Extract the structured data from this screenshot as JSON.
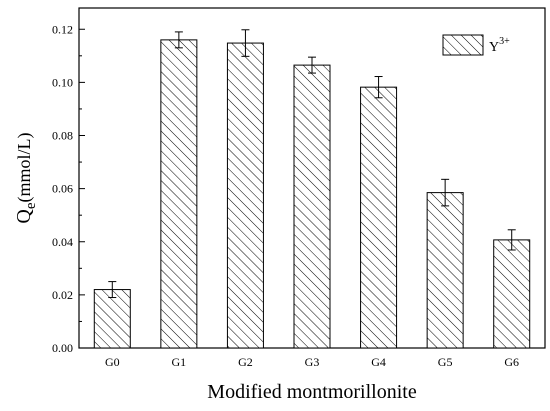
{
  "chart_data": {
    "type": "bar",
    "categories": [
      "G0",
      "G1",
      "G2",
      "G3",
      "G4",
      "G5",
      "G6"
    ],
    "series": [
      {
        "name": "Y³⁺",
        "legend_base": "Y",
        "legend_sup": "3+",
        "values": [
          0.022,
          0.116,
          0.1148,
          0.1065,
          0.0982,
          0.0585,
          0.0407
        ],
        "errors": [
          0.003,
          0.003,
          0.005,
          0.003,
          0.004,
          0.005,
          0.0038
        ]
      }
    ],
    "xlabel": "Modified montmorillonite",
    "ylabel_main": "Q",
    "ylabel_sub": "e",
    "ylabel_unit": "(mmol/L)",
    "ylim": [
      0,
      0.128
    ],
    "yticks": [
      "0.00",
      "0.02",
      "0.04",
      "0.06",
      "0.08",
      "0.10",
      "0.12"
    ],
    "yticks_values": [
      0,
      0.02,
      0.04,
      0.06,
      0.08,
      0.1,
      0.12
    ],
    "bar_pattern": "diagonal-hatch",
    "legend_position": "top-right",
    "grid": false
  }
}
